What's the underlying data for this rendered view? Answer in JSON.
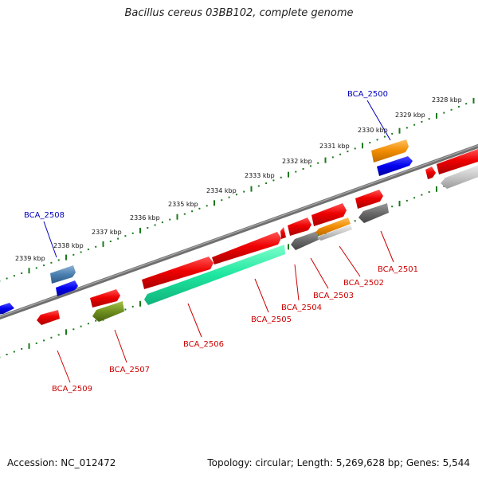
{
  "title": "Bacillus cereus 03BB102, complete genome",
  "footer": {
    "accession": "Accession: NC_012472",
    "topology": "Topology: circular; Length: 5,269,628 bp; Genes: 5,544"
  },
  "colors": {
    "backbone": "#7a7a7a",
    "ticks": "#1a7a1a",
    "label_red": "#cc0000",
    "label_blue": "#0000bb"
  },
  "kbp_labels": [
    "2328 kbp",
    "2329 kbp",
    "2330 kbp",
    "2331 kbp",
    "2332 kbp",
    "2333 kbp",
    "2334 kbp",
    "2335 kbp",
    "2336 kbp",
    "2337 kbp",
    "2338 kbp",
    "2339 kbp"
  ],
  "gene_labels": {
    "bca_2500": "BCA_2500",
    "bca_2501": "BCA_2501",
    "bca_2502": "BCA_2502",
    "bca_2503": "BCA_2503",
    "bca_2504": "BCA_2504",
    "bca_2505": "BCA_2505",
    "bca_2506": "BCA_2506",
    "bca_2507": "BCA_2507",
    "bca_2508": "BCA_2508",
    "bca_2509": "BCA_2509"
  }
}
